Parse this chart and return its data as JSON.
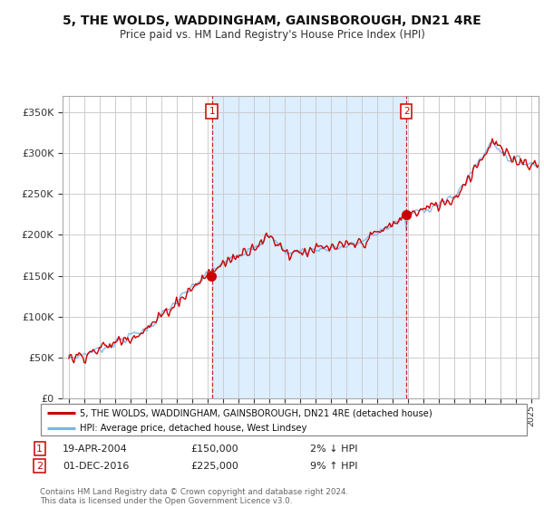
{
  "title": "5, THE WOLDS, WADDINGHAM, GAINSBOROUGH, DN21 4RE",
  "subtitle": "Price paid vs. HM Land Registry's House Price Index (HPI)",
  "yticks": [
    0,
    50000,
    100000,
    150000,
    200000,
    250000,
    300000,
    350000
  ],
  "ytick_labels": [
    "£0",
    "£50K",
    "£100K",
    "£150K",
    "£200K",
    "£250K",
    "£300K",
    "£350K"
  ],
  "sale1_year": 2004.29,
  "sale1_value": 150000,
  "sale2_year": 2016.92,
  "sale2_value": 225000,
  "hpi_color": "#7ab4e8",
  "price_color": "#cc0000",
  "highlight_color": "#ddeeff",
  "legend_label_price": "5, THE WOLDS, WADDINGHAM, GAINSBOROUGH, DN21 4RE (detached house)",
  "legend_label_hpi": "HPI: Average price, detached house, West Lindsey",
  "note1_date": "19-APR-2004",
  "note1_price": "£150,000",
  "note1_hpi": "2% ↓ HPI",
  "note2_date": "01-DEC-2016",
  "note2_price": "£225,000",
  "note2_hpi": "9% ↑ HPI",
  "footer": "Contains HM Land Registry data © Crown copyright and database right 2024.\nThis data is licensed under the Open Government Licence v3.0."
}
